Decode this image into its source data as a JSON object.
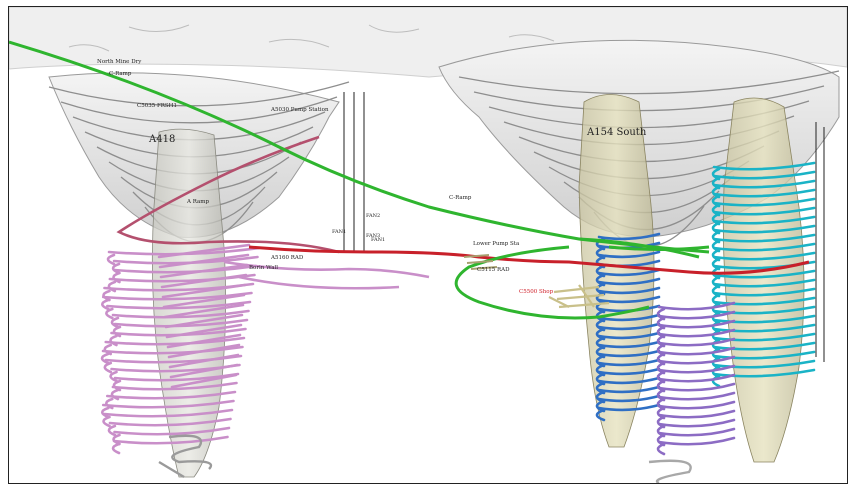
{
  "labels": {
    "pit_west": "A418",
    "pit_east": "A154 South",
    "north_mine_dry": "North Mine Dry",
    "c_ramp_top": "C-Ramp",
    "fresh_air": "C5035 FRSH1",
    "pump_station": "A5030 Pump Station",
    "a_ramp": "A Ramp",
    "c_ramp_mid": "C-Ramp",
    "fan_a": "FAN2",
    "fan_b": "FAN3",
    "fan_c": "FAN1",
    "fan_d": "FAN1",
    "a5160_rad": "A5160 RAD",
    "boring_wall": "Borin Wall",
    "lower_pump_sta": "Lower\nPump Sta",
    "c5115_rad": "C5115 RAD",
    "c5500_shop": "C5500 Shop"
  },
  "colors": {
    "green_ramp": "#2fb52f",
    "red_drift": "#c8202a",
    "pink_workings": "#c98fc9",
    "blue_workings": "#2f6fc4",
    "cyan_workings": "#1ab3c6",
    "purple_workings": "#8c6cc4",
    "orebody": "#d8d3a6",
    "pit_shell": "#e4e4e4"
  }
}
